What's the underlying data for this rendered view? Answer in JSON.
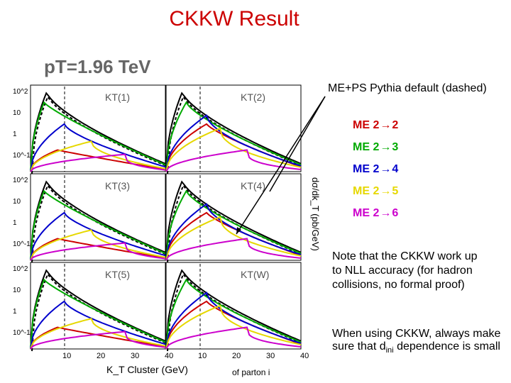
{
  "title": "CKKW Result",
  "header_text": "pT=1.96 TeV",
  "legend_note": "ME+PS Pythia default (dashed)",
  "me_items": [
    {
      "label": "ME 2",
      "target": "2",
      "color": "#cc0000"
    },
    {
      "label": "ME 2",
      "target": "3",
      "color": "#00aa00"
    },
    {
      "label": "ME 2",
      "target": "4",
      "color": "#0000cc"
    },
    {
      "label": "ME 2",
      "target": "5",
      "color": "#e6d800"
    },
    {
      "label": "ME 2",
      "target": "6",
      "color": "#cc00cc"
    }
  ],
  "note": "Note that the CKKW work up to NLL accuracy (for hadron collisions, no formal proof)",
  "note2_pre": "When using CKKW, always make sure that d",
  "note2_sub": "ini",
  "note2_post": " dependence is small",
  "parton_label": "of parton i",
  "chart_data": {
    "type": "line",
    "xlabel": "K_T Cluster (GeV)",
    "ylabel": "dσ/dk_T (pb/GeV)",
    "x_ticks": [
      "10",
      "20",
      "30",
      "40"
    ],
    "y_ticks": [
      "10^2",
      "10",
      "1",
      "10^-1"
    ],
    "panels": [
      "KT(1)",
      "KT(2)",
      "KT(3)",
      "KT(4)",
      "KT(5)",
      "KT(W)"
    ],
    "series": [
      {
        "name": "ME+PS Pythia default (dashed)",
        "color": "#000000"
      },
      {
        "name": "ME 2→2",
        "color": "#cc0000"
      },
      {
        "name": "ME 2→3",
        "color": "#00aa00"
      },
      {
        "name": "ME 2→4",
        "color": "#0000cc"
      },
      {
        "name": "ME 2→5",
        "color": "#e6d800"
      },
      {
        "name": "ME 2→6",
        "color": "#cc00cc"
      }
    ],
    "grid": false
  }
}
